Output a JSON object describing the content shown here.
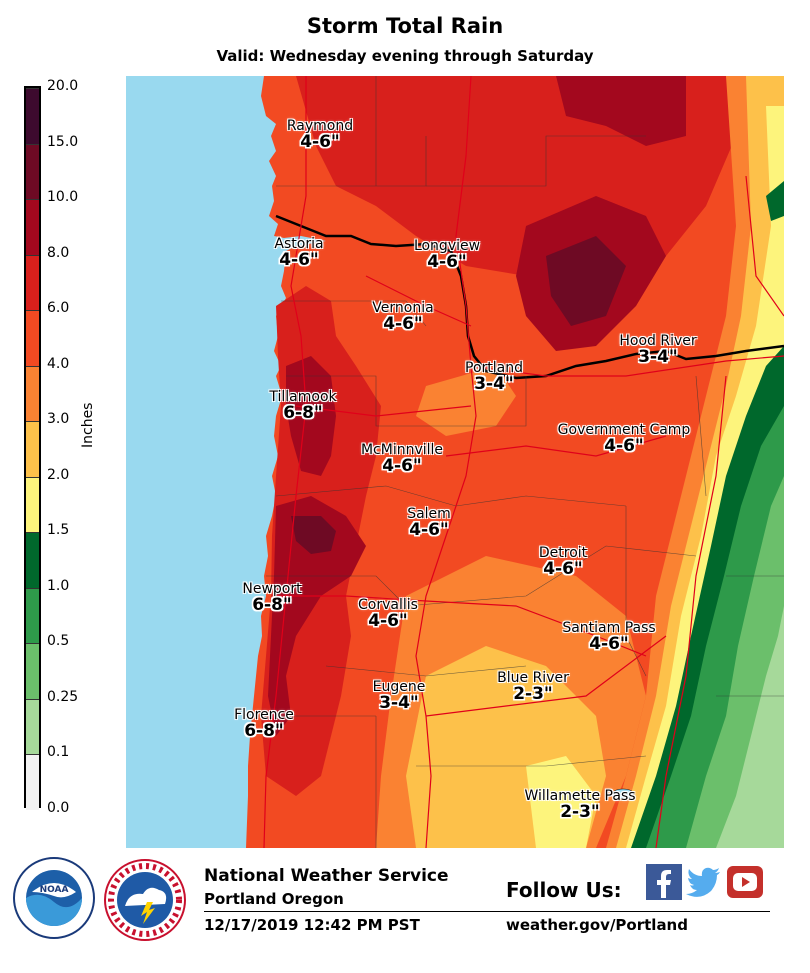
{
  "title": "Storm Total Rain",
  "subtitle": "Valid: Wednesday evening through Saturday",
  "legend": {
    "unit": "Inches",
    "ticks": [
      "20.0",
      "15.0",
      "10.0",
      "8.0",
      "6.0",
      "4.0",
      "3.0",
      "2.0",
      "1.5",
      "1.0",
      "0.5",
      "0.25",
      "0.1",
      "0.0"
    ],
    "colors": [
      "#3d0a2e",
      "#6e0a24",
      "#a3081e",
      "#d8201c",
      "#f24a22",
      "#fa8232",
      "#fdc14a",
      "#fdf47c",
      "#00682c",
      "#2e9a4a",
      "#6bbf6b",
      "#a6d99a",
      "#f2f2f2"
    ]
  },
  "colors": {
    "water": "#99d9ef",
    "c_6_8": "#d8201c",
    "c_4_6": "#f24a22",
    "c_3_4": "#fa8232",
    "c_2_3": "#fdc14a",
    "c_15_2": "#fdf47c",
    "c_1_15": "#00682c",
    "c_05_1": "#2e9a4a",
    "c_025_05": "#6bbf6b",
    "c_01_025": "#a6d99a",
    "c_8_10": "#a3081e",
    "c_10_15": "#6e0a24"
  },
  "places": [
    {
      "name": "Raymond",
      "amount": "4-6\""
    },
    {
      "name": "Astoria",
      "amount": "4-6\""
    },
    {
      "name": "Longview",
      "amount": "4-6\""
    },
    {
      "name": "Vernonia",
      "amount": "4-6\""
    },
    {
      "name": "Portland",
      "amount": "3-4\""
    },
    {
      "name": "Hood River",
      "amount": "3-4\""
    },
    {
      "name": "Tillamook",
      "amount": "6-8\""
    },
    {
      "name": "Government Camp",
      "amount": "4-6\""
    },
    {
      "name": "McMinnville",
      "amount": "4-6\""
    },
    {
      "name": "Salem",
      "amount": "4-6\""
    },
    {
      "name": "Detroit",
      "amount": "4-6\""
    },
    {
      "name": "Newport",
      "amount": "6-8\""
    },
    {
      "name": "Corvallis",
      "amount": "4-6\""
    },
    {
      "name": "Santiam Pass",
      "amount": "4-6\""
    },
    {
      "name": "Eugene",
      "amount": "3-4\""
    },
    {
      "name": "Blue River",
      "amount": "2-3\""
    },
    {
      "name": "Florence",
      "amount": "6-8\""
    },
    {
      "name": "Willamette Pass",
      "amount": "2-3\""
    }
  ],
  "footer": {
    "office": "National Weather Service",
    "location": "Portland Oregon",
    "datetime": "12/17/2019 12:42 PM PST",
    "follow": "Follow Us:",
    "url": "weather.gov/Portland",
    "noaa_logo_text": "NOAA",
    "social_icons": [
      "facebook-icon",
      "twitter-icon",
      "youtube-icon"
    ]
  }
}
